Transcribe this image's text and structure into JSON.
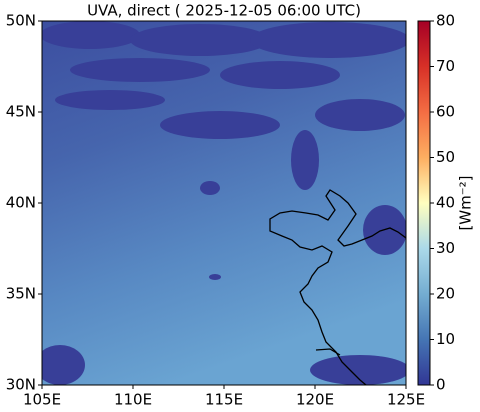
{
  "map": {
    "title": "UVA, direct ( 2025-12-05 06:00 UTC)",
    "xlim": [
      105,
      125
    ],
    "ylim": [
      30,
      50
    ],
    "xticks": [
      {
        "value": 105,
        "label": "105E"
      },
      {
        "value": 110,
        "label": "110E"
      },
      {
        "value": 115,
        "label": "115E"
      },
      {
        "value": 120,
        "label": "120E"
      },
      {
        "value": 125,
        "label": "125E"
      }
    ],
    "yticks": [
      {
        "value": 30,
        "label": "30N"
      },
      {
        "value": 35,
        "label": "35N"
      },
      {
        "value": 40,
        "label": "40N"
      },
      {
        "value": 45,
        "label": "45N"
      },
      {
        "value": 50,
        "label": "50N"
      }
    ],
    "colorbar": {
      "label": "[Wm⁻²]",
      "lim": [
        0,
        80
      ],
      "ticks": [
        0,
        10,
        20,
        30,
        40,
        50,
        60,
        70,
        80
      ]
    }
  }
}
